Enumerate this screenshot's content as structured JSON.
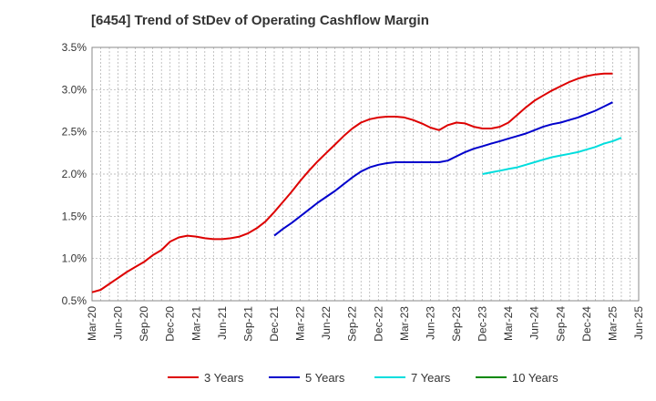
{
  "chart_data": {
    "type": "line",
    "title": "[6454]  Trend of StDev of Operating Cashflow Margin",
    "xlabel": "",
    "ylabel": "",
    "x_ticks": [
      "Mar-20",
      "Jun-20",
      "Sep-20",
      "Dec-20",
      "Mar-21",
      "Jun-21",
      "Sep-21",
      "Dec-21",
      "Mar-22",
      "Jun-22",
      "Sep-22",
      "Dec-22",
      "Mar-23",
      "Jun-23",
      "Sep-23",
      "Dec-23",
      "Mar-24",
      "Jun-24",
      "Sep-24",
      "Dec-24",
      "Mar-25",
      "Jun-25"
    ],
    "y_ticks": [
      "0.5%",
      "1.0%",
      "1.5%",
      "2.0%",
      "2.5%",
      "3.0%",
      "3.5%"
    ],
    "ylim": [
      0.5,
      3.5
    ],
    "y_unit": "%",
    "grid": true,
    "legend_position": "bottom",
    "series": [
      {
        "name": "3 Years",
        "color": "#dd0000",
        "points": [
          [
            "Mar-20",
            0.6
          ],
          [
            "Apr-20",
            0.63
          ],
          [
            "May-20",
            0.7
          ],
          [
            "Jun-20",
            0.77
          ],
          [
            "Jul-20",
            0.84
          ],
          [
            "Aug-20",
            0.9
          ],
          [
            "Sep-20",
            0.96
          ],
          [
            "Oct-20",
            1.04
          ],
          [
            "Nov-20",
            1.1
          ],
          [
            "Dec-20",
            1.2
          ],
          [
            "Jan-21",
            1.25
          ],
          [
            "Feb-21",
            1.27
          ],
          [
            "Mar-21",
            1.26
          ],
          [
            "Apr-21",
            1.24
          ],
          [
            "May-21",
            1.23
          ],
          [
            "Jun-21",
            1.23
          ],
          [
            "Jul-21",
            1.24
          ],
          [
            "Aug-21",
            1.26
          ],
          [
            "Sep-21",
            1.3
          ],
          [
            "Oct-21",
            1.36
          ],
          [
            "Nov-21",
            1.44
          ],
          [
            "Dec-21",
            1.55
          ],
          [
            "Jan-22",
            1.67
          ],
          [
            "Feb-22",
            1.79
          ],
          [
            "Mar-22",
            1.92
          ],
          [
            "Apr-22",
            2.04
          ],
          [
            "May-22",
            2.15
          ],
          [
            "Jun-22",
            2.25
          ],
          [
            "Jul-22",
            2.35
          ],
          [
            "Aug-22",
            2.45
          ],
          [
            "Sep-22",
            2.54
          ],
          [
            "Oct-22",
            2.61
          ],
          [
            "Nov-22",
            2.65
          ],
          [
            "Dec-22",
            2.67
          ],
          [
            "Jan-23",
            2.68
          ],
          [
            "Feb-23",
            2.68
          ],
          [
            "Mar-23",
            2.67
          ],
          [
            "Apr-23",
            2.64
          ],
          [
            "May-23",
            2.6
          ],
          [
            "Jun-23",
            2.55
          ],
          [
            "Jul-23",
            2.52
          ],
          [
            "Aug-23",
            2.58
          ],
          [
            "Sep-23",
            2.61
          ],
          [
            "Oct-23",
            2.6
          ],
          [
            "Nov-23",
            2.56
          ],
          [
            "Dec-23",
            2.54
          ],
          [
            "Jan-24",
            2.54
          ],
          [
            "Feb-24",
            2.56
          ],
          [
            "Mar-24",
            2.61
          ],
          [
            "Apr-24",
            2.7
          ],
          [
            "May-24",
            2.79
          ],
          [
            "Jun-24",
            2.87
          ],
          [
            "Jul-24",
            2.93
          ],
          [
            "Aug-24",
            2.99
          ],
          [
            "Sep-24",
            3.04
          ],
          [
            "Oct-24",
            3.09
          ],
          [
            "Nov-24",
            3.13
          ],
          [
            "Dec-24",
            3.16
          ],
          [
            "Jan-25",
            3.18
          ],
          [
            "Feb-25",
            3.19
          ],
          [
            "Mar-25",
            3.19
          ]
        ]
      },
      {
        "name": "5 Years",
        "color": "#0000cc",
        "points": [
          [
            "Dec-21",
            1.27
          ],
          [
            "Jan-22",
            1.35
          ],
          [
            "Feb-22",
            1.42
          ],
          [
            "Mar-22",
            1.5
          ],
          [
            "Apr-22",
            1.58
          ],
          [
            "May-22",
            1.66
          ],
          [
            "Jun-22",
            1.73
          ],
          [
            "Jul-22",
            1.8
          ],
          [
            "Aug-22",
            1.88
          ],
          [
            "Sep-22",
            1.96
          ],
          [
            "Oct-22",
            2.03
          ],
          [
            "Nov-22",
            2.08
          ],
          [
            "Dec-22",
            2.11
          ],
          [
            "Jan-23",
            2.13
          ],
          [
            "Feb-23",
            2.14
          ],
          [
            "Mar-23",
            2.14
          ],
          [
            "Apr-23",
            2.14
          ],
          [
            "May-23",
            2.14
          ],
          [
            "Jun-23",
            2.14
          ],
          [
            "Jul-23",
            2.14
          ],
          [
            "Aug-23",
            2.16
          ],
          [
            "Sep-23",
            2.21
          ],
          [
            "Oct-23",
            2.26
          ],
          [
            "Nov-23",
            2.3
          ],
          [
            "Dec-23",
            2.33
          ],
          [
            "Jan-24",
            2.36
          ],
          [
            "Feb-24",
            2.39
          ],
          [
            "Mar-24",
            2.42
          ],
          [
            "Apr-24",
            2.45
          ],
          [
            "May-24",
            2.48
          ],
          [
            "Jun-24",
            2.52
          ],
          [
            "Jul-24",
            2.56
          ],
          [
            "Aug-24",
            2.59
          ],
          [
            "Sep-24",
            2.61
          ],
          [
            "Oct-24",
            2.64
          ],
          [
            "Nov-24",
            2.67
          ],
          [
            "Dec-24",
            2.71
          ],
          [
            "Jan-25",
            2.75
          ],
          [
            "Feb-25",
            2.8
          ],
          [
            "Mar-25",
            2.85
          ]
        ]
      },
      {
        "name": "7 Years",
        "color": "#00dddd",
        "points": [
          [
            "Dec-23",
            2.0
          ],
          [
            "Jan-24",
            2.02
          ],
          [
            "Feb-24",
            2.04
          ],
          [
            "Mar-24",
            2.06
          ],
          [
            "Apr-24",
            2.08
          ],
          [
            "May-24",
            2.11
          ],
          [
            "Jun-24",
            2.14
          ],
          [
            "Jul-24",
            2.17
          ],
          [
            "Aug-24",
            2.2
          ],
          [
            "Sep-24",
            2.22
          ],
          [
            "Oct-24",
            2.24
          ],
          [
            "Nov-24",
            2.26
          ],
          [
            "Dec-24",
            2.29
          ],
          [
            "Jan-25",
            2.32
          ],
          [
            "Feb-25",
            2.36
          ],
          [
            "Mar-25",
            2.39
          ],
          [
            "Apr-25",
            2.43
          ]
        ]
      },
      {
        "name": "10 Years",
        "color": "#008800",
        "points": []
      }
    ]
  }
}
